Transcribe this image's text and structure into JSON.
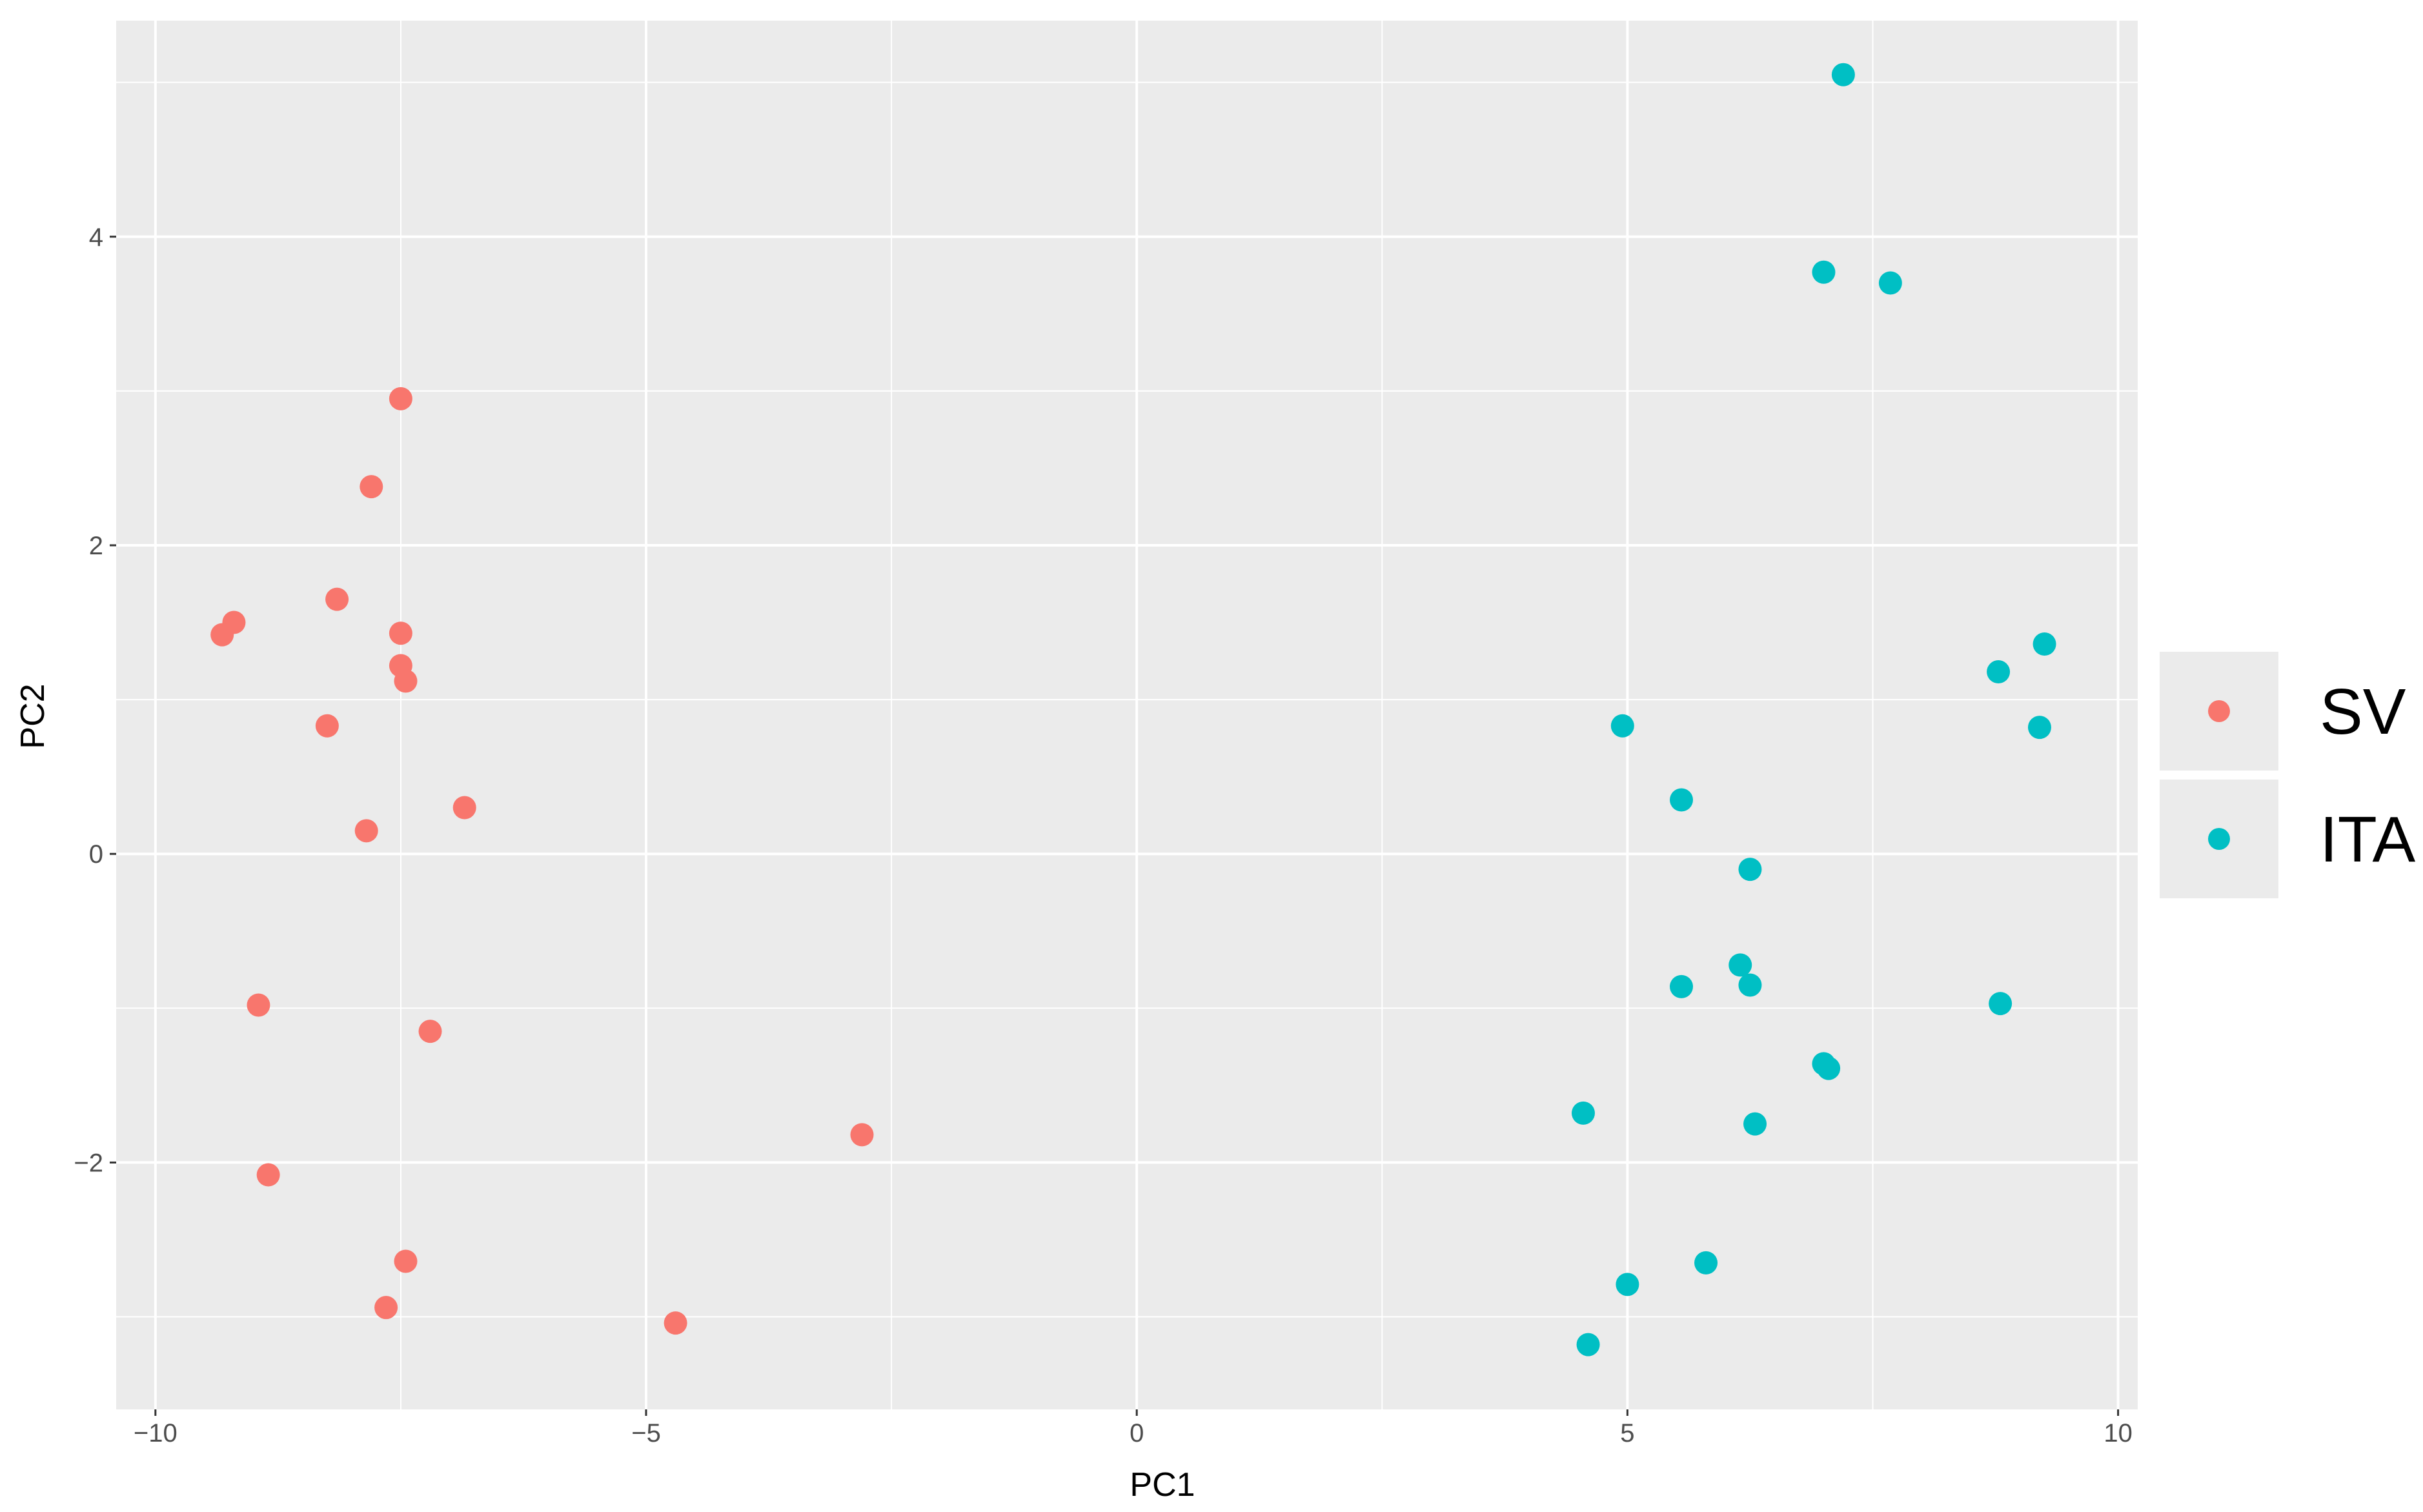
{
  "chart_data": {
    "type": "scatter",
    "title": "",
    "xlabel": "PC1",
    "ylabel": "PC2",
    "xlim": [
      -10.4,
      10.2
    ],
    "ylim": [
      -3.6,
      5.4
    ],
    "x_ticks": [
      -10,
      -5,
      0,
      5,
      10
    ],
    "x_tick_labels": [
      "−10",
      "−5",
      "0",
      "5",
      "10"
    ],
    "y_ticks": [
      -2,
      0,
      2,
      4
    ],
    "y_tick_labels": [
      "−2",
      "0",
      "2",
      "4"
    ],
    "grid": true,
    "legend_position": "right",
    "colors": {
      "panel": "#ebebeb",
      "grid": "#ffffff",
      "legend_key": "#ebebeb"
    },
    "series": [
      {
        "name": "SV",
        "color": "#f8766d",
        "points": [
          [
            -7.5,
            2.95
          ],
          [
            -7.8,
            2.38
          ],
          [
            -8.15,
            1.65
          ],
          [
            -9.2,
            1.5
          ],
          [
            -9.32,
            1.42
          ],
          [
            -7.5,
            1.43
          ],
          [
            -7.5,
            1.22
          ],
          [
            -7.45,
            1.12
          ],
          [
            -8.25,
            0.83
          ],
          [
            -6.85,
            0.3
          ],
          [
            -7.85,
            0.15
          ],
          [
            -8.95,
            -0.98
          ],
          [
            -7.2,
            -1.15
          ],
          [
            -2.8,
            -1.82
          ],
          [
            -8.85,
            -2.08
          ],
          [
            -7.45,
            -2.64
          ],
          [
            -7.65,
            -2.94
          ],
          [
            -4.7,
            -3.04
          ]
        ]
      },
      {
        "name": "ITA",
        "color": "#00bfc4",
        "points": [
          [
            7.2,
            5.05
          ],
          [
            7.0,
            3.77
          ],
          [
            7.68,
            3.7
          ],
          [
            9.25,
            1.36
          ],
          [
            8.78,
            1.18
          ],
          [
            9.2,
            0.82
          ],
          [
            4.95,
            0.83
          ],
          [
            5.55,
            0.35
          ],
          [
            6.25,
            -0.1
          ],
          [
            6.15,
            -0.72
          ],
          [
            6.25,
            -0.85
          ],
          [
            5.55,
            -0.86
          ],
          [
            8.8,
            -0.97
          ],
          [
            7.0,
            -1.36
          ],
          [
            7.05,
            -1.39
          ],
          [
            4.55,
            -1.68
          ],
          [
            6.3,
            -1.75
          ],
          [
            5.8,
            -2.65
          ],
          [
            5.0,
            -2.79
          ],
          [
            4.6,
            -3.18
          ]
        ]
      }
    ]
  }
}
